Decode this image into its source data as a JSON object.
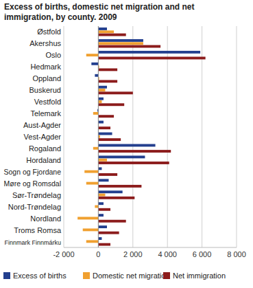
{
  "chart_data": {
    "type": "bar",
    "orientation": "horizontal",
    "title": "Excess of births, domestic net migration and net immigration, by county. 2009",
    "categories": [
      "Østfold",
      "Akershus",
      "Oslo",
      "Hedmark",
      "Oppland",
      "Buskerud",
      "Vestfold",
      "Telemark",
      "Aust-Agder",
      "Vest-Agder",
      "Rogaland",
      "Hordaland",
      "Sogn og Fjordane",
      "Møre og Romsdal",
      "Sør-Trøndelag",
      "Nord-Trøndelag",
      "Nordland",
      "Troms Romsa",
      "Finnmark Finnmárku"
    ],
    "series": [
      {
        "name": "Excess of births",
        "color": "#233f8e",
        "values": [
          500,
          2600,
          5900,
          -400,
          -200,
          500,
          300,
          -50,
          300,
          800,
          3300,
          2700,
          200,
          600,
          1400,
          300,
          300,
          500,
          200
        ]
      },
      {
        "name": "Domestic net migration",
        "color": "#f0a030",
        "values": [
          900,
          2600,
          -700,
          50,
          50,
          400,
          200,
          -300,
          0,
          100,
          -300,
          500,
          -800,
          -700,
          400,
          -200,
          -1200,
          -900,
          -700
        ]
      },
      {
        "name": "Net immigration",
        "color": "#8c1c1c",
        "values": [
          1600,
          3600,
          6200,
          1100,
          1100,
          2000,
          1500,
          900,
          700,
          1300,
          4200,
          4100,
          1100,
          2500,
          2100,
          700,
          1600,
          1200,
          700
        ]
      }
    ],
    "xlim": [
      -2000,
      8000
    ],
    "xticks": [
      {
        "value": -2000,
        "label": "-2 000"
      },
      0,
      {
        "value": 2000,
        "label": "2 000"
      },
      {
        "value": 4000,
        "label": "4 000"
      },
      {
        "value": 6000,
        "label": "6 000"
      },
      {
        "value": 8000,
        "label": "8 000"
      }
    ],
    "grid": true,
    "legend": "bottom"
  }
}
